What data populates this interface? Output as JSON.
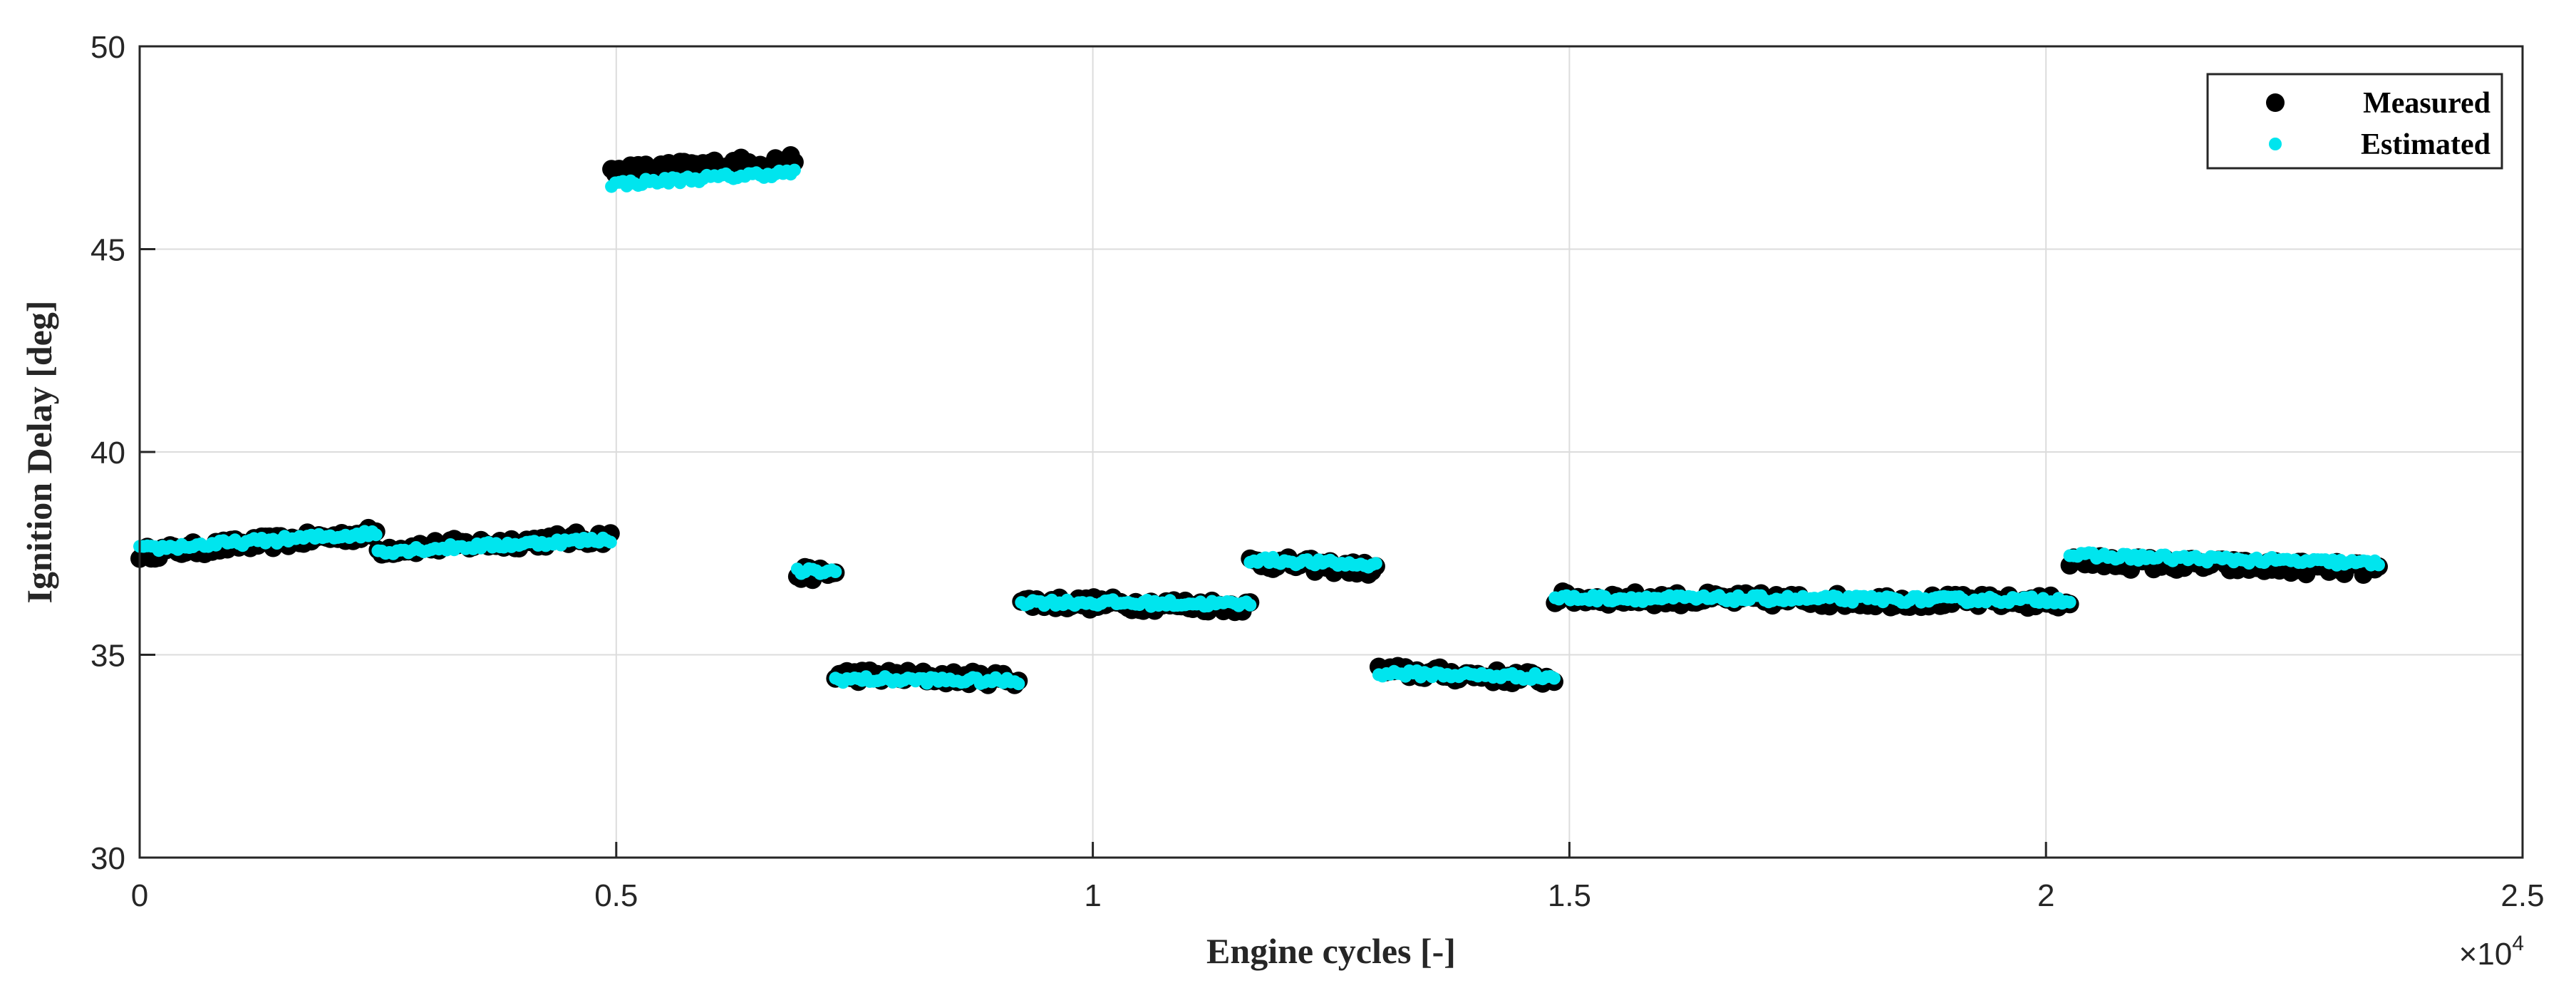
{
  "chart_data": {
    "type": "scatter",
    "title": "",
    "xlabel": "Engine cycles [-]",
    "ylabel": "Ignition Delay [deg]",
    "x_exponent_label": "×10",
    "x_exponent_power": "4",
    "xlim": [
      0,
      25000
    ],
    "ylim": [
      30,
      50
    ],
    "x_ticks": [
      0,
      5000,
      10000,
      15000,
      20000,
      25000
    ],
    "x_tick_labels": [
      "0",
      "0.5",
      "1",
      "1.5",
      "2",
      "2.5"
    ],
    "y_ticks": [
      30,
      35,
      40,
      45,
      50
    ],
    "y_tick_labels": [
      "30",
      "35",
      "40",
      "45",
      "50"
    ],
    "grid": true,
    "legend_position": "top-right",
    "series": [
      {
        "name": "Measured",
        "color": "#000000",
        "marker": "filled-circle-large",
        "segments": [
          {
            "x_start": 0,
            "x_end": 2500,
            "y_start": 37.5,
            "y_end": 38.0
          },
          {
            "x_start": 2500,
            "x_end": 4950,
            "y_start": 37.6,
            "y_end": 37.9
          },
          {
            "x_start": 4950,
            "x_end": 6900,
            "y_start": 46.9,
            "y_end": 47.2
          },
          {
            "x_start": 6900,
            "x_end": 7300,
            "y_start": 37.0,
            "y_end": 37.0
          },
          {
            "x_start": 7300,
            "x_end": 9250,
            "y_start": 34.5,
            "y_end": 34.4
          },
          {
            "x_start": 9250,
            "x_end": 11650,
            "y_start": 36.3,
            "y_end": 36.2
          },
          {
            "x_start": 11650,
            "x_end": 13000,
            "y_start": 37.3,
            "y_end": 37.1
          },
          {
            "x_start": 13000,
            "x_end": 14850,
            "y_start": 34.6,
            "y_end": 34.4
          },
          {
            "x_start": 14850,
            "x_end": 20250,
            "y_start": 36.4,
            "y_end": 36.3
          },
          {
            "x_start": 20250,
            "x_end": 23500,
            "y_start": 37.3,
            "y_end": 37.1
          }
        ]
      },
      {
        "name": "Estimated",
        "color": "#00e5ee",
        "marker": "filled-circle-small",
        "segments": [
          {
            "x_start": 0,
            "x_end": 2500,
            "y_start": 37.6,
            "y_end": 38.0
          },
          {
            "x_start": 2500,
            "x_end": 4950,
            "y_start": 37.55,
            "y_end": 37.85
          },
          {
            "x_start": 4950,
            "x_end": 6900,
            "y_start": 46.6,
            "y_end": 46.9
          },
          {
            "x_start": 6900,
            "x_end": 7300,
            "y_start": 37.05,
            "y_end": 37.05
          },
          {
            "x_start": 7300,
            "x_end": 9250,
            "y_start": 34.4,
            "y_end": 34.35
          },
          {
            "x_start": 9250,
            "x_end": 11650,
            "y_start": 36.3,
            "y_end": 36.25
          },
          {
            "x_start": 11650,
            "x_end": 13000,
            "y_start": 37.35,
            "y_end": 37.2
          },
          {
            "x_start": 13000,
            "x_end": 14850,
            "y_start": 34.55,
            "y_end": 34.45
          },
          {
            "x_start": 14850,
            "x_end": 20250,
            "y_start": 36.4,
            "y_end": 36.35
          },
          {
            "x_start": 20250,
            "x_end": 23500,
            "y_start": 37.45,
            "y_end": 37.25
          }
        ]
      }
    ]
  }
}
